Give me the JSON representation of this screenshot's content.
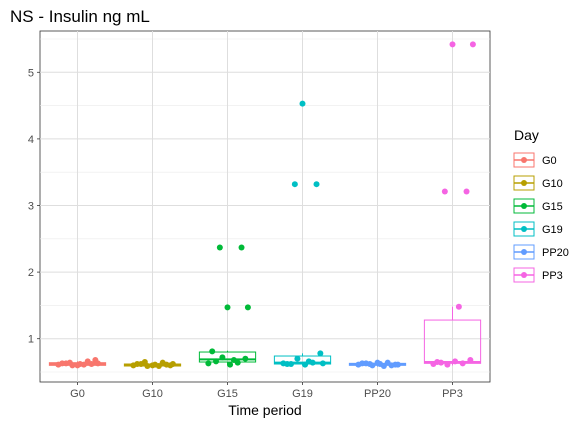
{
  "chart_data": {
    "type": "boxplot",
    "title": "NS - Insulin ng mL",
    "xlabel": "Time period",
    "ylabel": "",
    "categories": [
      "G0",
      "G10",
      "G15",
      "G19",
      "PP20",
      "PP3"
    ],
    "y_ticks": [
      1,
      2,
      3,
      4,
      5
    ],
    "ylim": [
      0.35,
      5.62
    ],
    "grid": true,
    "legend": {
      "title": "Day",
      "position": "right",
      "entries": [
        "G0",
        "G10",
        "G15",
        "G19",
        "PP20",
        "PP3"
      ]
    },
    "colors": [
      "#F8766D",
      "#B79F00",
      "#00BA38",
      "#00BFC4",
      "#619CFF",
      "#F564E3"
    ],
    "series": [
      {
        "name": "G0",
        "box": {
          "q1": 0.6,
          "median": 0.62,
          "q3": 0.64,
          "whisker_low": 0.58,
          "whisker_high": 0.66
        },
        "points": [
          0.61,
          0.63,
          0.6,
          0.62,
          0.66,
          0.68,
          0.63,
          0.61,
          0.64,
          0.62,
          0.6,
          0.63
        ]
      },
      {
        "name": "G10",
        "box": {
          "q1": 0.59,
          "median": 0.61,
          "q3": 0.62,
          "whisker_low": 0.58,
          "whisker_high": 0.63
        },
        "points": [
          0.6,
          0.62,
          0.59,
          0.61,
          0.64,
          0.6,
          0.62,
          0.59,
          0.65,
          0.61,
          0.6,
          0.62
        ]
      },
      {
        "name": "G15",
        "box": {
          "q1": 0.65,
          "median": 0.69,
          "q3": 0.8,
          "whisker_low": 0.6,
          "whisker_high": 0.82
        },
        "points": [
          0.63,
          0.66,
          0.72,
          0.61,
          0.64,
          0.7,
          0.81,
          0.68,
          2.37,
          2.37,
          1.47,
          1.47
        ]
      },
      {
        "name": "G19",
        "box": {
          "q1": 0.62,
          "median": 0.64,
          "q3": 0.74,
          "whisker_low": 0.6,
          "whisker_high": 0.78
        },
        "points": [
          0.63,
          0.62,
          0.7,
          0.61,
          0.64,
          0.78,
          0.62,
          0.66,
          3.32,
          3.32,
          4.53,
          0.63
        ]
      },
      {
        "name": "PP20",
        "box": {
          "q1": 0.6,
          "median": 0.62,
          "q3": 0.63,
          "whisker_low": 0.58,
          "whisker_high": 0.65
        },
        "points": [
          0.61,
          0.63,
          0.6,
          0.62,
          0.64,
          0.61,
          0.63,
          0.59,
          0.62,
          0.6,
          0.64,
          0.61
        ]
      },
      {
        "name": "PP3",
        "box": {
          "q1": 0.63,
          "median": 0.65,
          "q3": 1.28,
          "whisker_low": 0.6,
          "whisker_high": 1.48
        },
        "points": [
          0.62,
          0.64,
          0.61,
          0.66,
          0.63,
          0.68,
          0.65,
          1.48,
          3.21,
          3.21,
          5.42,
          5.42
        ]
      }
    ]
  }
}
